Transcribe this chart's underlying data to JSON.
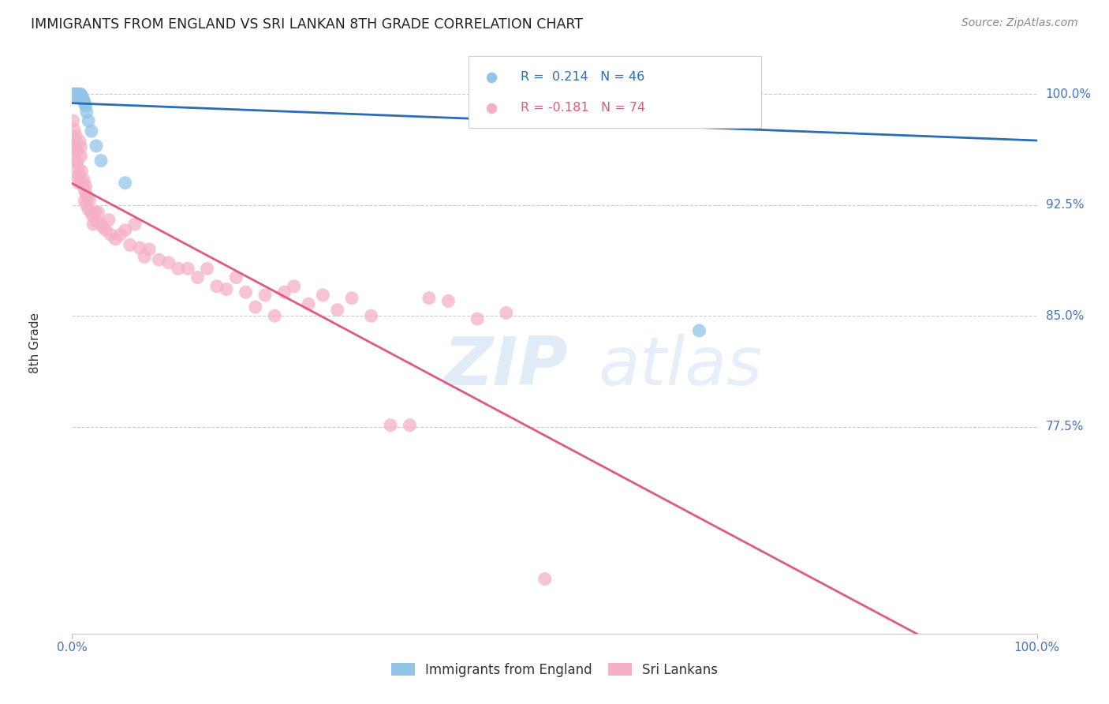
{
  "title": "IMMIGRANTS FROM ENGLAND VS SRI LANKAN 8TH GRADE CORRELATION CHART",
  "source": "Source: ZipAtlas.com",
  "ylabel": "8th Grade",
  "ytick_labels": [
    "100.0%",
    "92.5%",
    "85.0%",
    "77.5%"
  ],
  "ytick_values": [
    1.0,
    0.925,
    0.85,
    0.775
  ],
  "england_color": "#92c5e8",
  "srilanka_color": "#f5b0c5",
  "england_line_color": "#2a6db5",
  "srilanka_line_color": "#e05a80",
  "legend_england_r": "R =  0.214",
  "legend_england_n": "N = 46",
  "legend_srilanka_r": "R = -0.181",
  "legend_srilanka_n": "N = 74",
  "eng_x": [
    0.001,
    0.001,
    0.002,
    0.002,
    0.003,
    0.003,
    0.003,
    0.004,
    0.004,
    0.004,
    0.005,
    0.005,
    0.005,
    0.006,
    0.006,
    0.007,
    0.007,
    0.007,
    0.008,
    0.008,
    0.008,
    0.009,
    0.009,
    0.009,
    0.01,
    0.01,
    0.011,
    0.012,
    0.013,
    0.014,
    0.015,
    0.017,
    0.02,
    0.025,
    0.03,
    0.055,
    0.56,
    0.6,
    0.64,
    0.66,
    0.7,
    0.55,
    0.57,
    0.58,
    0.62,
    0.65
  ],
  "eng_y": [
    0.999,
    1.0,
    0.999,
    1.0,
    0.998,
    0.999,
    1.0,
    0.998,
    0.999,
    1.0,
    0.998,
    0.999,
    1.0,
    0.998,
    1.0,
    0.998,
    0.999,
    1.0,
    0.998,
    0.999,
    1.0,
    0.998,
    0.999,
    1.0,
    0.998,
    0.999,
    0.997,
    0.996,
    0.994,
    0.992,
    0.988,
    0.982,
    0.975,
    0.965,
    0.955,
    0.94,
    1.0,
    1.0,
    1.0,
    1.0,
    1.0,
    0.99,
    0.988,
    0.985,
    0.995,
    0.84
  ],
  "sri_x": [
    0.001,
    0.001,
    0.002,
    0.002,
    0.003,
    0.003,
    0.004,
    0.004,
    0.005,
    0.005,
    0.006,
    0.006,
    0.007,
    0.007,
    0.008,
    0.009,
    0.009,
    0.01,
    0.011,
    0.012,
    0.013,
    0.013,
    0.014,
    0.015,
    0.015,
    0.016,
    0.017,
    0.018,
    0.02,
    0.021,
    0.022,
    0.024,
    0.025,
    0.027,
    0.03,
    0.032,
    0.035,
    0.038,
    0.04,
    0.045,
    0.05,
    0.055,
    0.06,
    0.065,
    0.07,
    0.075,
    0.08,
    0.09,
    0.1,
    0.11,
    0.12,
    0.13,
    0.14,
    0.15,
    0.16,
    0.17,
    0.18,
    0.19,
    0.2,
    0.21,
    0.22,
    0.23,
    0.245,
    0.26,
    0.275,
    0.29,
    0.31,
    0.33,
    0.35,
    0.37,
    0.39,
    0.42,
    0.45,
    0.49
  ],
  "sri_y": [
    0.982,
    0.963,
    0.976,
    0.97,
    0.966,
    0.956,
    0.962,
    0.972,
    0.954,
    0.962,
    0.944,
    0.95,
    0.94,
    0.946,
    0.968,
    0.958,
    0.964,
    0.948,
    0.94,
    0.942,
    0.935,
    0.928,
    0.938,
    0.932,
    0.925,
    0.93,
    0.922,
    0.928,
    0.92,
    0.918,
    0.912,
    0.92,
    0.914,
    0.92,
    0.912,
    0.91,
    0.908,
    0.915,
    0.905,
    0.902,
    0.905,
    0.908,
    0.898,
    0.912,
    0.896,
    0.89,
    0.895,
    0.888,
    0.886,
    0.882,
    0.882,
    0.876,
    0.882,
    0.87,
    0.868,
    0.876,
    0.866,
    0.856,
    0.864,
    0.85,
    0.866,
    0.87,
    0.858,
    0.864,
    0.854,
    0.862,
    0.85,
    0.776,
    0.776,
    0.862,
    0.86,
    0.848,
    0.852,
    0.672
  ]
}
